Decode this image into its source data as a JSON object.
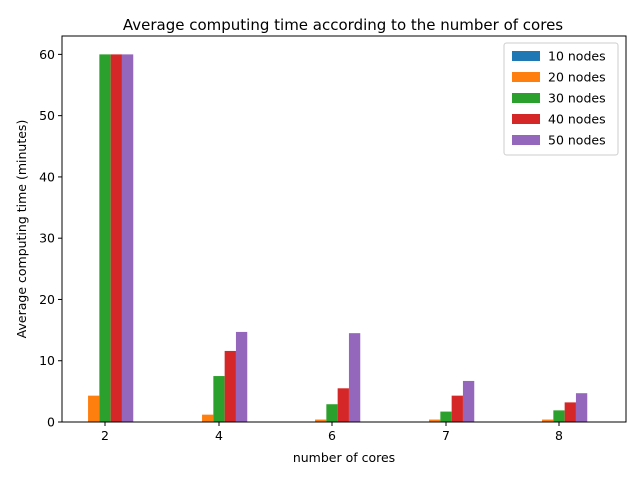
{
  "chart_data": {
    "type": "bar",
    "title": "Average computing time according to the number of cores",
    "xlabel": "number of cores",
    "ylabel": "Average computing time (minutes)",
    "categories": [
      "2",
      "4",
      "6",
      "7",
      "8"
    ],
    "ylim": [
      0,
      63
    ],
    "yticks": [
      0,
      10,
      20,
      30,
      40,
      50,
      60
    ],
    "legend_position": "top-right",
    "grid": false,
    "series": [
      {
        "name": "10 nodes",
        "color": "#1f77b4",
        "values": [
          0.02,
          0.05,
          0.05,
          0.05,
          0.05
        ]
      },
      {
        "name": "20 nodes",
        "color": "#ff7f0e",
        "values": [
          4.3,
          1.2,
          0.4,
          0.4,
          0.4
        ]
      },
      {
        "name": "30 nodes",
        "color": "#2ca02c",
        "values": [
          60,
          7.5,
          2.9,
          1.7,
          1.9
        ]
      },
      {
        "name": "40 nodes",
        "color": "#d62728",
        "values": [
          60,
          11.6,
          5.5,
          4.3,
          3.2
        ]
      },
      {
        "name": "50 nodes",
        "color": "#9467bd",
        "values": [
          60,
          14.7,
          14.5,
          6.7,
          4.7
        ]
      }
    ]
  }
}
